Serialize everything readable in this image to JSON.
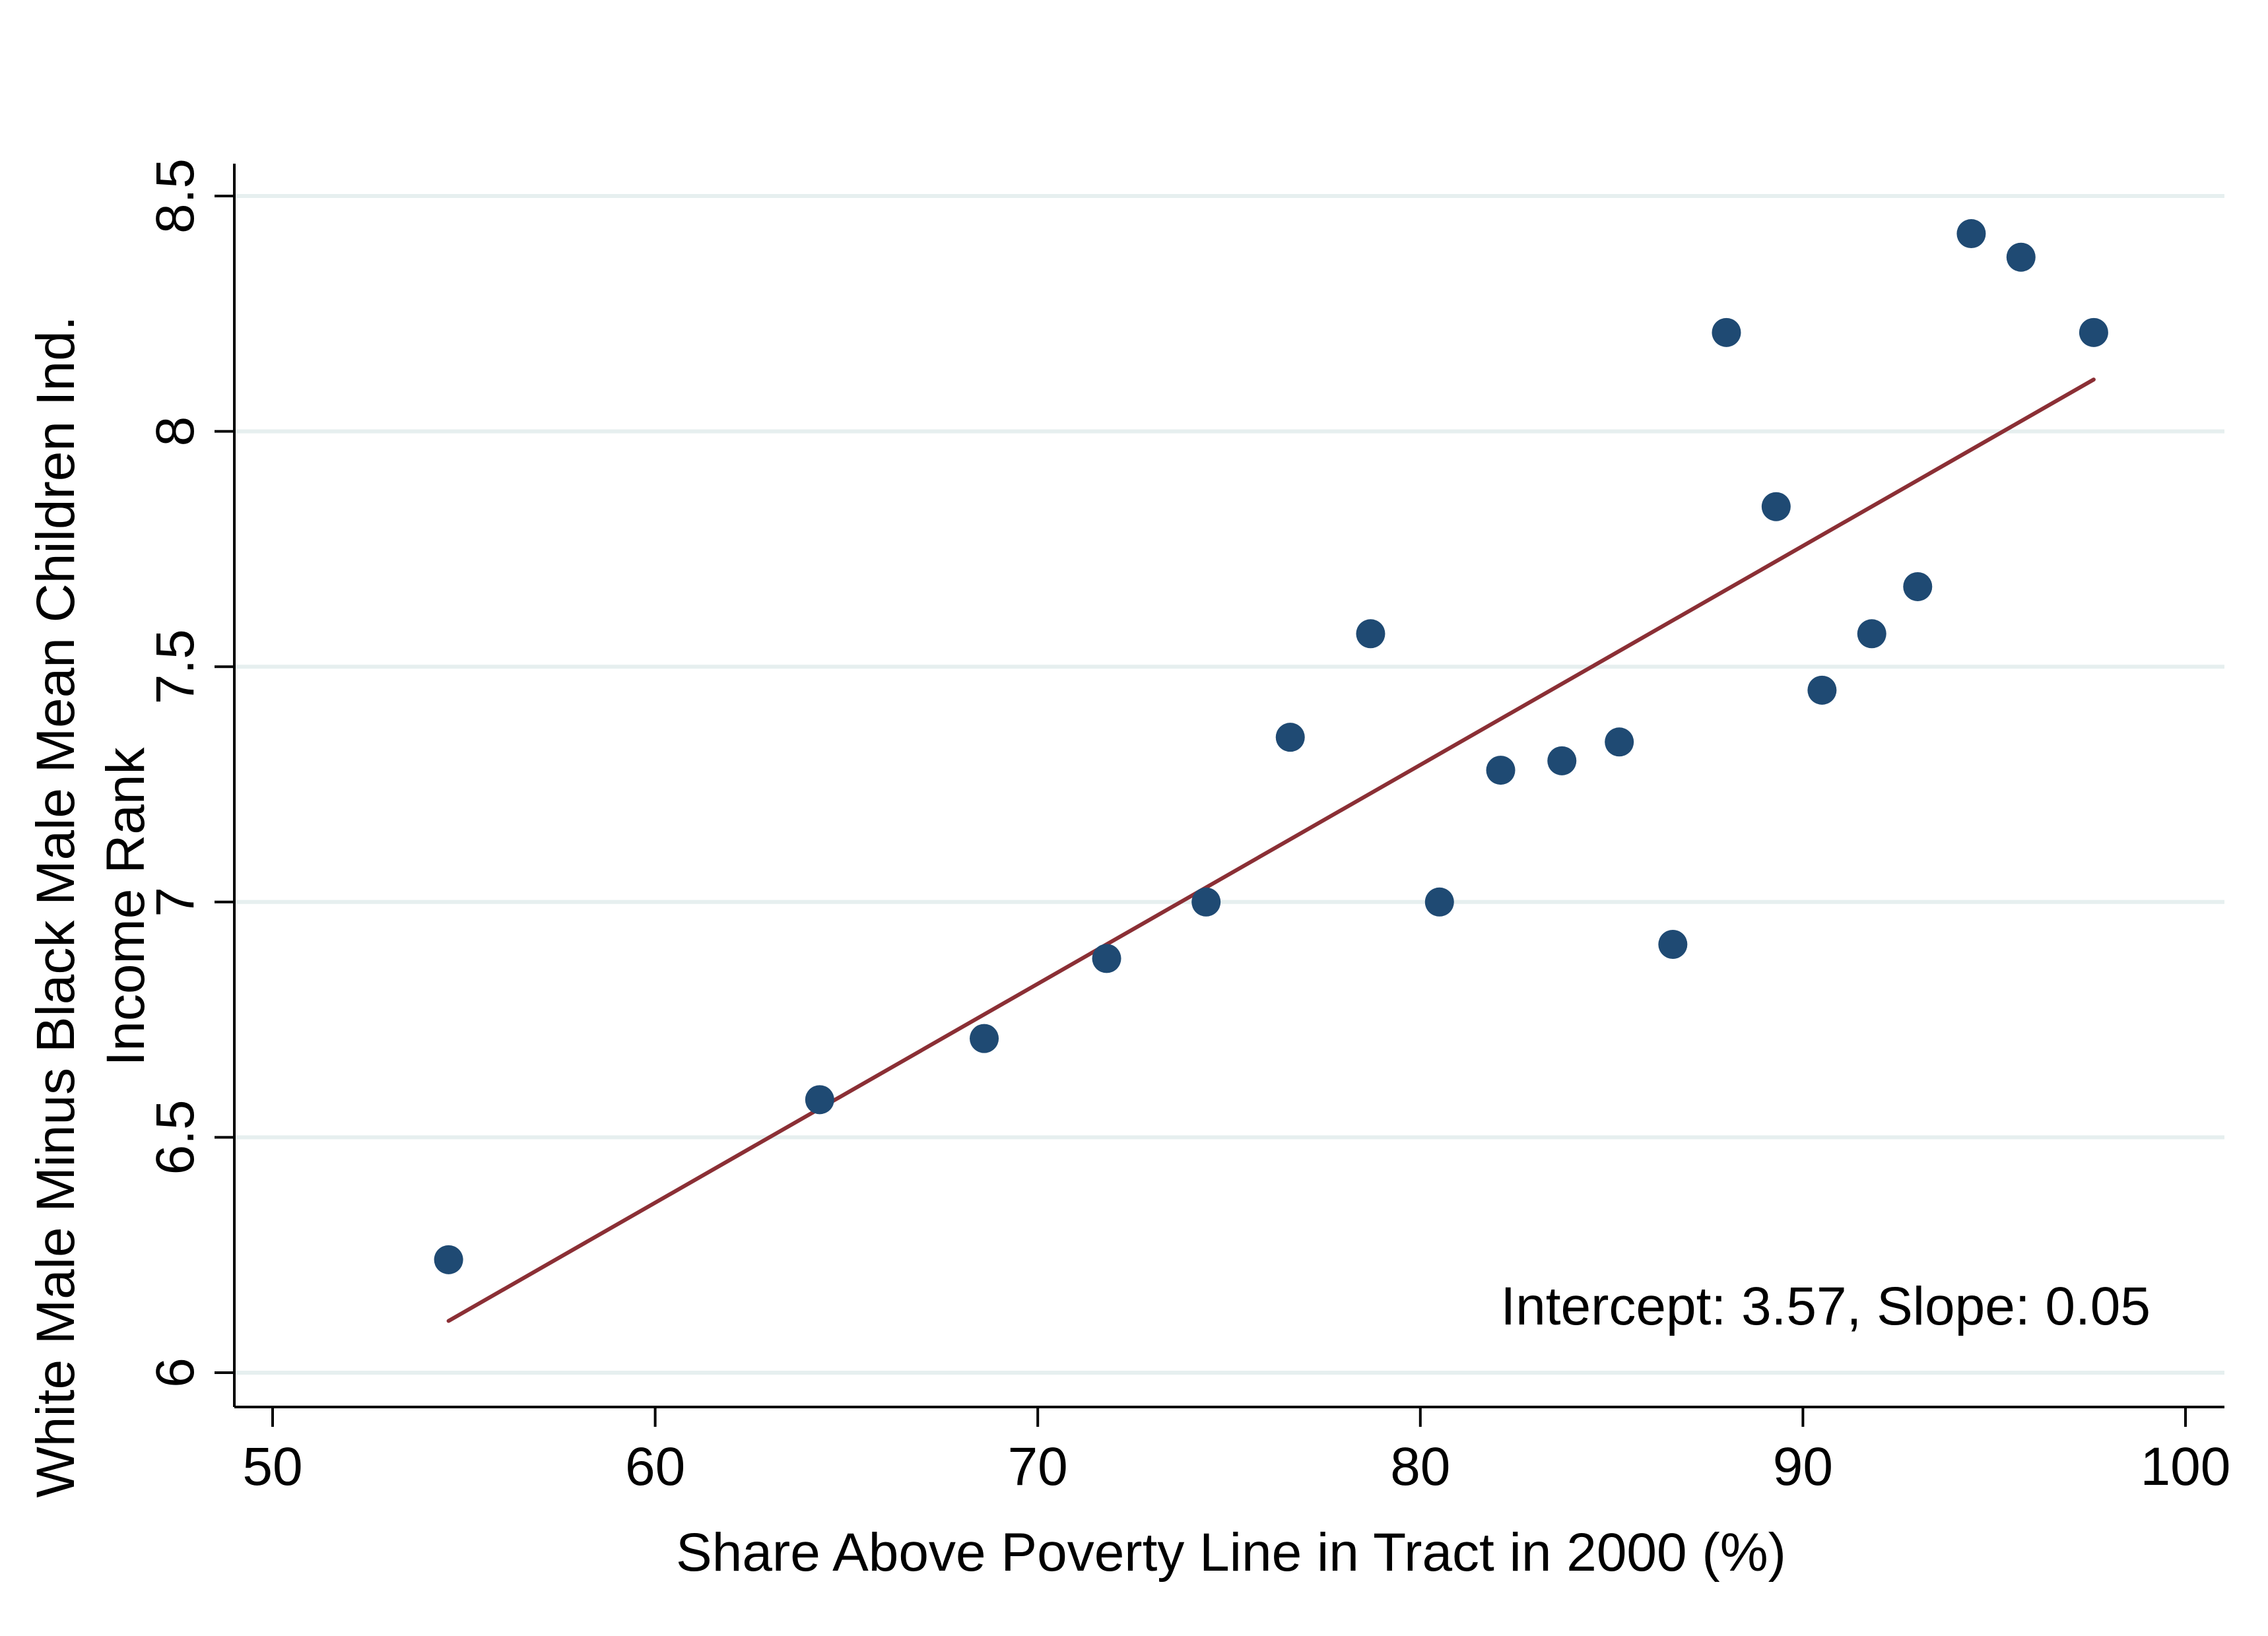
{
  "chart_data": {
    "type": "scatter",
    "title": "",
    "xlabel": "Share Above Poverty Line in Tract in 2000 (%)",
    "ylabel_lines": [
      "White Male Minus Black Male Mean Children Ind.",
      "Income Rank"
    ],
    "xlim": [
      50,
      100
    ],
    "ylim": [
      6,
      8.5
    ],
    "x_ticks": [
      50,
      60,
      70,
      80,
      90,
      100
    ],
    "x_tick_labels": [
      "50",
      "60",
      "70",
      "80",
      "90",
      "100"
    ],
    "y_ticks": [
      6,
      6.5,
      7,
      7.5,
      8,
      8.5
    ],
    "y_tick_labels": [
      "6",
      "6.5",
      "7",
      "7.5",
      "8",
      "8.5"
    ],
    "grid": "horizontal",
    "series": [
      {
        "points": [
          [
            54.6,
            6.24
          ],
          [
            64.3,
            6.58
          ],
          [
            68.6,
            6.71
          ],
          [
            71.8,
            6.88
          ],
          [
            74.4,
            7.0
          ],
          [
            76.6,
            7.35
          ],
          [
            78.7,
            7.57
          ],
          [
            80.5,
            7.0
          ],
          [
            82.1,
            7.28
          ],
          [
            83.7,
            7.3
          ],
          [
            85.2,
            7.34
          ],
          [
            86.6,
            6.91
          ],
          [
            88.0,
            8.21
          ],
          [
            89.3,
            7.84
          ],
          [
            90.5,
            7.45
          ],
          [
            91.8,
            7.57
          ],
          [
            93.0,
            7.67
          ],
          [
            94.4,
            8.42
          ],
          [
            95.7,
            8.37
          ],
          [
            97.6,
            8.21
          ]
        ],
        "color": "#1f4a73"
      }
    ],
    "fit_line": {
      "intercept": 3.57,
      "slope": 0.05,
      "x_range": [
        54.6,
        97.6
      ],
      "y_range": [
        6.11,
        8.11
      ],
      "color": "#8b2f35"
    },
    "annotation": "Intercept: 3.57, Slope: 0.05",
    "colors": {
      "grid": "#e6efef",
      "axis": "#000000"
    }
  }
}
